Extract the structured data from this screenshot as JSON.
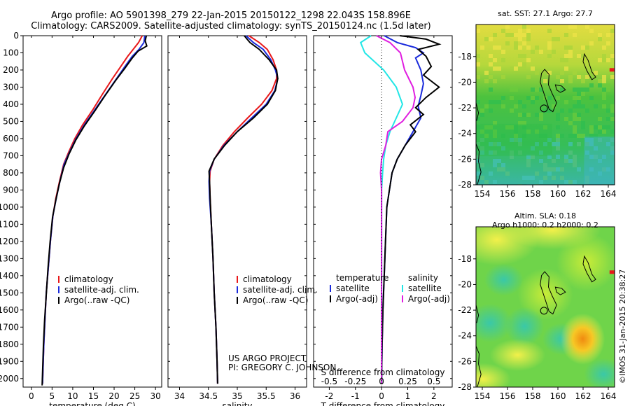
{
  "header": {
    "line1": "Argo profile: AO 5901398_279 22-Jan-2015 20150122_1298 22.043S 158.896E",
    "line2": "Climatology: CARS2009. Satellite-adjusted climatology: synTS_20150124.nc (1.5d later)"
  },
  "colors": {
    "climatology": "#e8181a",
    "satellite": "#1a2bdc",
    "argo": "#000000",
    "satellite_salinity": "#22e6e6",
    "argo_salinity": "#e01ee0"
  },
  "chart_data": [
    {
      "type": "line",
      "id": "temperature-profile",
      "xlabel": "temperature (deg C)",
      "xlim": [
        -2,
        31.5
      ],
      "ylim": [
        2050,
        0
      ],
      "xticks": [
        0,
        5,
        10,
        15,
        20,
        25,
        30
      ],
      "yticks": [
        0,
        100,
        200,
        300,
        400,
        500,
        600,
        700,
        800,
        900,
        1000,
        1100,
        1200,
        1300,
        1400,
        1500,
        1600,
        1700,
        1800,
        1900,
        2000
      ],
      "legend": [
        "climatology",
        "satellite-adj. clim.",
        "Argo(..raw -QC)"
      ],
      "series": [
        {
          "name": "climatology",
          "color": "#e8181a",
          "points": [
            [
              26.8,
              0
            ],
            [
              25.9,
              40
            ],
            [
              24.6,
              80
            ],
            [
              23.3,
              120
            ],
            [
              21.6,
              180
            ],
            [
              19.6,
              250
            ],
            [
              17.2,
              340
            ],
            [
              14.9,
              430
            ],
            [
              12.4,
              520
            ],
            [
              10.5,
              600
            ],
            [
              9.0,
              680
            ],
            [
              7.8,
              750
            ],
            [
              6.8,
              850
            ],
            [
              5.9,
              950
            ],
            [
              5.2,
              1050
            ],
            [
              4.6,
              1200
            ],
            [
              4.1,
              1350
            ],
            [
              3.6,
              1500
            ],
            [
              3.3,
              1650
            ],
            [
              3.0,
              1800
            ],
            [
              2.8,
              1950
            ],
            [
              2.7,
              2030
            ]
          ]
        },
        {
          "name": "satellite-adj. clim.",
          "color": "#1a2bdc",
          "points": [
            [
              27.4,
              0
            ],
            [
              27.2,
              40
            ],
            [
              26.0,
              80
            ],
            [
              24.4,
              120
            ],
            [
              22.6,
              180
            ],
            [
              20.6,
              250
            ],
            [
              18.0,
              340
            ],
            [
              15.4,
              430
            ],
            [
              12.8,
              520
            ],
            [
              10.8,
              600
            ],
            [
              9.2,
              680
            ],
            [
              7.9,
              750
            ],
            [
              6.9,
              850
            ],
            [
              6.0,
              950
            ],
            [
              5.2,
              1050
            ],
            [
              4.6,
              1200
            ],
            [
              4.1,
              1350
            ],
            [
              3.6,
              1500
            ],
            [
              3.3,
              1650
            ],
            [
              3.0,
              1800
            ],
            [
              2.8,
              1950
            ],
            [
              2.7,
              2030
            ]
          ]
        },
        {
          "name": "Argo(..raw -QC)",
          "color": "#000000",
          "points": [
            [
              27.8,
              0
            ],
            [
              27.5,
              30
            ],
            [
              27.9,
              60
            ],
            [
              25.8,
              90
            ],
            [
              24.4,
              130
            ],
            [
              22.6,
              190
            ],
            [
              20.4,
              260
            ],
            [
              17.8,
              350
            ],
            [
              15.3,
              440
            ],
            [
              12.7,
              530
            ],
            [
              10.7,
              610
            ],
            [
              9.1,
              690
            ],
            [
              7.8,
              770
            ],
            [
              6.8,
              860
            ],
            [
              5.9,
              960
            ],
            [
              5.1,
              1060
            ],
            [
              4.5,
              1210
            ],
            [
              4.0,
              1360
            ],
            [
              3.6,
              1510
            ],
            [
              3.2,
              1660
            ],
            [
              2.9,
              1810
            ],
            [
              2.7,
              1960
            ],
            [
              2.6,
              2040
            ]
          ]
        }
      ]
    },
    {
      "type": "line",
      "id": "salinity-profile",
      "xlabel": "salinity",
      "xlim": [
        33.8,
        36.2
      ],
      "ylim": [
        2050,
        0
      ],
      "xticks": [
        34,
        34.5,
        35,
        35.5,
        36
      ],
      "legend": [
        "climatology",
        "satellite-adj. clim.",
        "Argo(..raw -QC)"
      ],
      "annotation": [
        "US ARGO PROJECT",
        "PI: GREGORY C. JOHNSON"
      ],
      "series": [
        {
          "name": "climatology",
          "color": "#e8181a",
          "points": [
            [
              35.2,
              0
            ],
            [
              35.38,
              40
            ],
            [
              35.52,
              80
            ],
            [
              35.62,
              140
            ],
            [
              35.68,
              200
            ],
            [
              35.68,
              250
            ],
            [
              35.6,
              320
            ],
            [
              35.42,
              400
            ],
            [
              35.18,
              480
            ],
            [
              34.95,
              560
            ],
            [
              34.75,
              640
            ],
            [
              34.6,
              720
            ],
            [
              34.53,
              790
            ],
            [
              34.52,
              850
            ],
            [
              34.53,
              950
            ],
            [
              34.55,
              1100
            ],
            [
              34.58,
              1300
            ],
            [
              34.6,
              1500
            ],
            [
              34.63,
              1700
            ],
            [
              34.65,
              1900
            ],
            [
              34.66,
              2030
            ]
          ]
        },
        {
          "name": "satellite-adj. clim.",
          "color": "#1a2bdc",
          "points": [
            [
              35.15,
              0
            ],
            [
              35.28,
              40
            ],
            [
              35.45,
              80
            ],
            [
              35.58,
              140
            ],
            [
              35.66,
              200
            ],
            [
              35.7,
              250
            ],
            [
              35.65,
              320
            ],
            [
              35.5,
              400
            ],
            [
              35.25,
              480
            ],
            [
              35.0,
              560
            ],
            [
              34.77,
              640
            ],
            [
              34.6,
              720
            ],
            [
              34.52,
              790
            ],
            [
              34.51,
              850
            ],
            [
              34.52,
              950
            ],
            [
              34.55,
              1100
            ],
            [
              34.58,
              1300
            ],
            [
              34.6,
              1500
            ],
            [
              34.63,
              1700
            ],
            [
              34.65,
              1900
            ],
            [
              34.66,
              2030
            ]
          ]
        },
        {
          "name": "Argo(..raw -QC)",
          "color": "#000000",
          "points": [
            [
              35.12,
              0
            ],
            [
              35.22,
              40
            ],
            [
              35.38,
              80
            ],
            [
              35.55,
              140
            ],
            [
              35.68,
              200
            ],
            [
              35.7,
              250
            ],
            [
              35.66,
              320
            ],
            [
              35.52,
              400
            ],
            [
              35.28,
              480
            ],
            [
              35.0,
              560
            ],
            [
              34.78,
              640
            ],
            [
              34.6,
              720
            ],
            [
              34.51,
              790
            ],
            [
              34.52,
              850
            ],
            [
              34.53,
              950
            ],
            [
              34.55,
              1100
            ],
            [
              34.58,
              1300
            ],
            [
              34.6,
              1500
            ],
            [
              34.63,
              1700
            ],
            [
              34.65,
              1900
            ],
            [
              34.66,
              2030
            ]
          ]
        }
      ]
    },
    {
      "type": "line",
      "id": "difference-profile",
      "xlabel": "T difference from climatology",
      "xlabel_top": "S difference from climatology",
      "xlim": [
        -2.6,
        2.7
      ],
      "ylim": [
        2050,
        0
      ],
      "xticks": [
        -2,
        -1,
        0,
        1,
        2
      ],
      "xticks_top": [
        -0.5,
        -0.25,
        0,
        0.25,
        0.5
      ],
      "legend_left_title": "temperature",
      "legend_right_title": "salinity",
      "legend_left": [
        "satellite",
        "Argo(-adj)"
      ],
      "legend_right": [
        "satellite",
        "Argo(-adj)"
      ],
      "series": [
        {
          "name": "satellite",
          "group": "temperature",
          "color": "#1a2bdc",
          "points": [
            [
              0.1,
              0
            ],
            [
              0.6,
              40
            ],
            [
              1.3,
              70
            ],
            [
              1.6,
              100
            ],
            [
              1.3,
              130
            ],
            [
              1.5,
              200
            ],
            [
              1.6,
              280
            ],
            [
              1.5,
              350
            ],
            [
              1.4,
              410
            ],
            [
              1.5,
              480
            ],
            [
              1.2,
              560
            ],
            [
              0.9,
              640
            ],
            [
              0.6,
              720
            ],
            [
              0.4,
              800
            ],
            [
              0.3,
              900
            ],
            [
              0.2,
              1000
            ],
            [
              0.15,
              1200
            ],
            [
              0.1,
              1400
            ],
            [
              0.05,
              1600
            ],
            [
              0.02,
              1800
            ],
            [
              0.0,
              2030
            ]
          ]
        },
        {
          "name": "Argo(-adj)",
          "group": "temperature",
          "color": "#000000",
          "points": [
            [
              0.7,
              0
            ],
            [
              1.7,
              20
            ],
            [
              2.2,
              50
            ],
            [
              1.4,
              80
            ],
            [
              1.7,
              120
            ],
            [
              1.9,
              180
            ],
            [
              1.6,
              230
            ],
            [
              2.2,
              300
            ],
            [
              1.7,
              360
            ],
            [
              1.3,
              420
            ],
            [
              1.6,
              460
            ],
            [
              1.1,
              520
            ],
            [
              1.3,
              560
            ],
            [
              0.9,
              640
            ],
            [
              0.6,
              720
            ],
            [
              0.4,
              800
            ],
            [
              0.3,
              900
            ],
            [
              0.2,
              1000
            ],
            [
              0.15,
              1200
            ],
            [
              0.1,
              1400
            ],
            [
              0.05,
              1600
            ],
            [
              0.02,
              1800
            ],
            [
              0.0,
              2030
            ]
          ]
        },
        {
          "name": "satellite",
          "group": "salinity",
          "color": "#22e6e6",
          "points": [
            [
              -0.1,
              0
            ],
            [
              -0.2,
              40
            ],
            [
              -0.16,
              100
            ],
            [
              0.02,
              200
            ],
            [
              0.14,
              300
            ],
            [
              0.2,
              400
            ],
            [
              0.14,
              480
            ],
            [
              0.08,
              560
            ],
            [
              0.04,
              640
            ],
            [
              0.02,
              720
            ],
            [
              0.01,
              800
            ],
            [
              0.0,
              900
            ],
            [
              0.0,
              1100
            ],
            [
              0.0,
              1500
            ],
            [
              0.0,
              2030
            ]
          ]
        },
        {
          "name": "Argo(-adj)",
          "group": "salinity",
          "color": "#e01ee0",
          "points": [
            [
              -0.05,
              0
            ],
            [
              0.08,
              40
            ],
            [
              0.18,
              100
            ],
            [
              0.22,
              200
            ],
            [
              0.3,
              300
            ],
            [
              0.32,
              360
            ],
            [
              0.3,
              420
            ],
            [
              0.2,
              500
            ],
            [
              0.06,
              560
            ],
            [
              0.04,
              640
            ],
            [
              0.0,
              720
            ],
            [
              -0.01,
              800
            ],
            [
              0.0,
              900
            ],
            [
              0.0,
              1100
            ],
            [
              0.0,
              1500
            ],
            [
              0.0,
              2030
            ]
          ]
        }
      ]
    },
    {
      "type": "heatmap",
      "id": "sst-map",
      "title": "sat. SST: 27.1  Argo: 27.7",
      "xlim": [
        153.5,
        164.5
      ],
      "ylim": [
        -28,
        -15.5
      ],
      "xticks": [
        154,
        156,
        158,
        160,
        162,
        164
      ],
      "yticks": [
        -18,
        -20,
        -22,
        -24,
        -26,
        -28
      ],
      "profile_marker": {
        "lon": 158.896,
        "lat": -22.043
      }
    },
    {
      "type": "heatmap",
      "id": "sla-map",
      "title": "Altim. SLA: 0.18",
      "subtitle": "Argo h1000: 0.2 h2000: 0.2",
      "xlim": [
        153.5,
        164.5
      ],
      "ylim": [
        -28,
        -15.5
      ],
      "xticks": [
        154,
        156,
        158,
        160,
        162,
        164
      ],
      "yticks": [
        -18,
        -20,
        -22,
        -24,
        -26,
        -28
      ],
      "profile_marker": {
        "lon": 158.896,
        "lat": -22.043
      }
    }
  ],
  "stamp": "©IMOS 31-Jan-2015 20:38:27"
}
